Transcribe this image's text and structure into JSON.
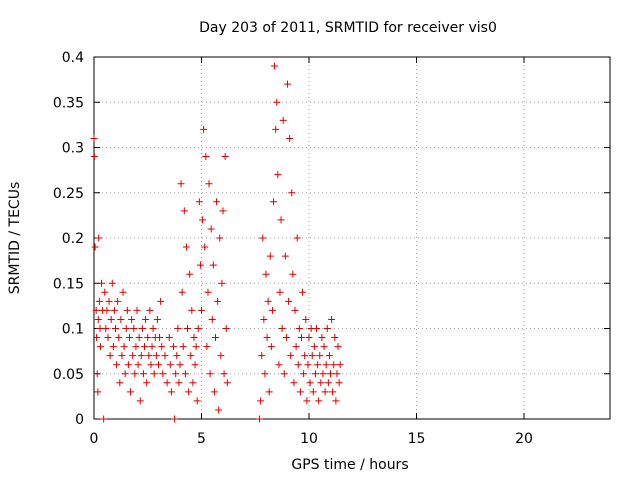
{
  "chart_data": {
    "type": "scatter",
    "title": "Day 203 of 2011, SRMTID for receiver vis0",
    "xlabel": "GPS time / hours",
    "ylabel": "SRMTID / TECUs",
    "xlim": [
      0,
      24
    ],
    "ylim": [
      0,
      0.4
    ],
    "x_ticks": [
      0,
      5,
      10,
      15,
      20
    ],
    "x_tick_labels": [
      "0",
      "5",
      "10",
      "15",
      "20"
    ],
    "y_ticks": [
      0,
      0.05,
      0.1,
      0.15,
      0.2,
      0.25,
      0.3,
      0.35,
      0.4
    ],
    "y_tick_labels": [
      "0",
      "0.05",
      "0.1",
      "0.15",
      "0.2",
      "0.25",
      "0.3",
      "0.35",
      "0.4"
    ],
    "grid": true,
    "marker": "+",
    "marker_color": "#e00000",
    "series": [
      {
        "name": "SRMTID",
        "points": [
          [
            0.0,
            0.31
          ],
          [
            0.02,
            0.29
          ],
          [
            0.05,
            0.19
          ],
          [
            0.1,
            0.12
          ],
          [
            0.12,
            0.09
          ],
          [
            0.15,
            0.05
          ],
          [
            0.18,
            0.03
          ],
          [
            0.2,
            0.11
          ],
          [
            0.22,
            0.2
          ],
          [
            0.25,
            0.13
          ],
          [
            0.28,
            0.1
          ],
          [
            0.3,
            0.08
          ],
          [
            0.35,
            0.15
          ],
          [
            0.4,
            0.12
          ],
          [
            0.45,
            0.0
          ],
          [
            0.5,
            0.14
          ],
          [
            0.55,
            0.1
          ],
          [
            0.6,
            0.12
          ],
          [
            0.65,
            0.09
          ],
          [
            0.7,
            0.13
          ],
          [
            0.75,
            0.07
          ],
          [
            0.8,
            0.11
          ],
          [
            0.85,
            0.15
          ],
          [
            0.9,
            0.08
          ],
          [
            0.95,
            0.12
          ],
          [
            1.0,
            0.1
          ],
          [
            1.05,
            0.06
          ],
          [
            1.1,
            0.13
          ],
          [
            1.15,
            0.09
          ],
          [
            1.2,
            0.04
          ],
          [
            1.25,
            0.11
          ],
          [
            1.3,
            0.07
          ],
          [
            1.35,
            0.14
          ],
          [
            1.4,
            0.08
          ],
          [
            1.45,
            0.05
          ],
          [
            1.5,
            0.1
          ],
          [
            1.55,
            0.12
          ],
          [
            1.6,
            0.06
          ],
          [
            1.65,
            0.09
          ],
          [
            1.7,
            0.03
          ],
          [
            1.75,
            0.11
          ],
          [
            1.8,
            0.07
          ],
          [
            1.85,
            0.1
          ],
          [
            1.9,
            0.05
          ],
          [
            1.95,
            0.08
          ],
          [
            2.0,
            0.12
          ],
          [
            2.05,
            0.06
          ],
          [
            2.1,
            0.09
          ],
          [
            2.15,
            0.02
          ],
          [
            2.2,
            0.07
          ],
          [
            2.25,
            0.1
          ],
          [
            2.3,
            0.05
          ],
          [
            2.35,
            0.08
          ],
          [
            2.4,
            0.11
          ],
          [
            2.45,
            0.04
          ],
          [
            2.5,
            0.09
          ],
          [
            2.55,
            0.07
          ],
          [
            2.6,
            0.12
          ],
          [
            2.65,
            0.06
          ],
          [
            2.7,
            0.08
          ],
          [
            2.75,
            0.1
          ],
          [
            2.8,
            0.05
          ],
          [
            2.85,
            0.09
          ],
          [
            2.9,
            0.07
          ],
          [
            2.95,
            0.11
          ],
          [
            3.0,
            0.06
          ],
          [
            3.05,
            0.09
          ],
          [
            3.1,
            0.13
          ],
          [
            3.15,
            0.08
          ],
          [
            3.2,
            0.05
          ],
          [
            3.3,
            0.07
          ],
          [
            3.4,
            0.04
          ],
          [
            3.5,
            0.09
          ],
          [
            3.55,
            0.06
          ],
          [
            3.6,
            0.03
          ],
          [
            3.7,
            0.08
          ],
          [
            3.75,
            0.0
          ],
          [
            3.8,
            0.05
          ],
          [
            3.85,
            0.07
          ],
          [
            3.9,
            0.1
          ],
          [
            3.95,
            0.04
          ],
          [
            4.0,
            0.06
          ],
          [
            4.05,
            0.26
          ],
          [
            4.1,
            0.14
          ],
          [
            4.15,
            0.08
          ],
          [
            4.2,
            0.23
          ],
          [
            4.25,
            0.05
          ],
          [
            4.3,
            0.19
          ],
          [
            4.35,
            0.1
          ],
          [
            4.4,
            0.03
          ],
          [
            4.45,
            0.16
          ],
          [
            4.5,
            0.07
          ],
          [
            4.55,
            0.12
          ],
          [
            4.6,
            0.04
          ],
          [
            4.65,
            0.09
          ],
          [
            4.7,
            0.06
          ],
          [
            4.75,
            0.08
          ],
          [
            4.8,
            0.02
          ],
          [
            4.85,
            0.1
          ],
          [
            4.9,
            0.24
          ],
          [
            4.95,
            0.17
          ],
          [
            5.0,
            0.12
          ],
          [
            5.05,
            0.22
          ],
          [
            5.1,
            0.32
          ],
          [
            5.15,
            0.19
          ],
          [
            5.2,
            0.29
          ],
          [
            5.25,
            0.08
          ],
          [
            5.3,
            0.14
          ],
          [
            5.35,
            0.26
          ],
          [
            5.4,
            0.05
          ],
          [
            5.45,
            0.21
          ],
          [
            5.5,
            0.11
          ],
          [
            5.55,
            0.17
          ],
          [
            5.6,
            0.03
          ],
          [
            5.65,
            0.09
          ],
          [
            5.7,
            0.24
          ],
          [
            5.75,
            0.13
          ],
          [
            5.8,
            0.01
          ],
          [
            5.85,
            0.2
          ],
          [
            5.9,
            0.07
          ],
          [
            5.95,
            0.15
          ],
          [
            6.0,
            0.23
          ],
          [
            6.05,
            0.05
          ],
          [
            6.1,
            0.29
          ],
          [
            6.15,
            0.1
          ],
          [
            6.2,
            0.04
          ],
          [
            7.7,
            0.0
          ],
          [
            7.75,
            0.02
          ],
          [
            7.8,
            0.07
          ],
          [
            7.85,
            0.2
          ],
          [
            7.9,
            0.11
          ],
          [
            7.95,
            0.05
          ],
          [
            8.0,
            0.16
          ],
          [
            8.05,
            0.09
          ],
          [
            8.1,
            0.13
          ],
          [
            8.15,
            0.03
          ],
          [
            8.2,
            0.18
          ],
          [
            8.25,
            0.08
          ],
          [
            8.3,
            0.12
          ],
          [
            8.35,
            0.24
          ],
          [
            8.4,
            0.39
          ],
          [
            8.45,
            0.32
          ],
          [
            8.5,
            0.35
          ],
          [
            8.55,
            0.27
          ],
          [
            8.6,
            0.06
          ],
          [
            8.65,
            0.14
          ],
          [
            8.7,
            0.22
          ],
          [
            8.75,
            0.1
          ],
          [
            8.8,
            0.33
          ],
          [
            8.85,
            0.05
          ],
          [
            8.9,
            0.18
          ],
          [
            8.95,
            0.09
          ],
          [
            9.0,
            0.37
          ],
          [
            9.05,
            0.13
          ],
          [
            9.1,
            0.31
          ],
          [
            9.15,
            0.07
          ],
          [
            9.2,
            0.25
          ],
          [
            9.25,
            0.16
          ],
          [
            9.3,
            0.04
          ],
          [
            9.35,
            0.12
          ],
          [
            9.4,
            0.08
          ],
          [
            9.45,
            0.2
          ],
          [
            9.5,
            0.06
          ],
          [
            9.55,
            0.1
          ],
          [
            9.6,
            0.03
          ],
          [
            9.65,
            0.09
          ],
          [
            9.7,
            0.14
          ],
          [
            9.75,
            0.05
          ],
          [
            9.8,
            0.07
          ],
          [
            9.85,
            0.11
          ],
          [
            9.9,
            0.02
          ],
          [
            9.95,
            0.06
          ],
          [
            10.0,
            0.09
          ],
          [
            10.05,
            0.04
          ],
          [
            10.1,
            0.1
          ],
          [
            10.15,
            0.07
          ],
          [
            10.2,
            0.03
          ],
          [
            10.25,
            0.08
          ],
          [
            10.3,
            0.05
          ],
          [
            10.35,
            0.1
          ],
          [
            10.4,
            0.06
          ],
          [
            10.45,
            0.02
          ],
          [
            10.5,
            0.07
          ],
          [
            10.55,
            0.04
          ],
          [
            10.6,
            0.09
          ],
          [
            10.65,
            0.05
          ],
          [
            10.7,
            0.08
          ],
          [
            10.75,
            0.03
          ],
          [
            10.8,
            0.06
          ],
          [
            10.85,
            0.1
          ],
          [
            10.9,
            0.04
          ],
          [
            10.95,
            0.07
          ],
          [
            11.0,
            0.05
          ],
          [
            11.05,
            0.11
          ],
          [
            11.1,
            0.03
          ],
          [
            11.15,
            0.06
          ],
          [
            11.2,
            0.09
          ],
          [
            11.25,
            0.02
          ],
          [
            11.3,
            0.05
          ],
          [
            11.35,
            0.08
          ],
          [
            11.4,
            0.04
          ],
          [
            11.45,
            0.06
          ]
        ]
      }
    ]
  }
}
